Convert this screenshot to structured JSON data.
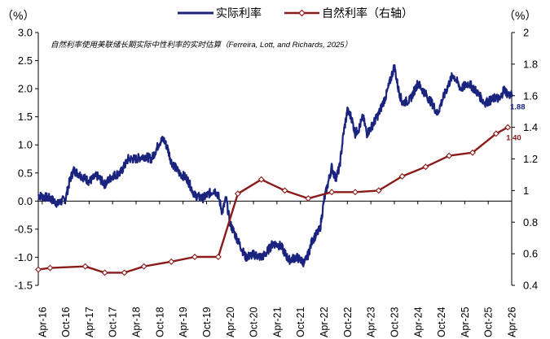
{
  "chart_data": {
    "type": "line",
    "annotation": "自然利率使用美联储长期实际中性利率的实时估算（Ferreira, Lott, and Richards, 2025）",
    "y_left": {
      "unit": "（%）",
      "ylim": [
        -1.5,
        3.0
      ],
      "ticks": [
        "3.0",
        "2.5",
        "2.0",
        "1.5",
        "1.0",
        "0.5",
        "0.0",
        "-0.5",
        "-1.0",
        "-1.5"
      ]
    },
    "y_right": {
      "unit": "（%）",
      "ylim": [
        0.4,
        2.0
      ],
      "ticks": [
        "2",
        "1.8",
        "1.6",
        "1.4",
        "1.2",
        "1",
        "0.8",
        "0.6",
        "0.4"
      ]
    },
    "x_range": [
      "2016-03",
      "2026-04"
    ],
    "x_ticks": [
      "Apr-16",
      "Oct-16",
      "Apr-17",
      "Oct-17",
      "Apr-18",
      "Oct-18",
      "Apr-19",
      "Oct-19",
      "Apr-20",
      "Oct-20",
      "Apr-21",
      "Oct-21",
      "Apr-22",
      "Oct-22",
      "Apr-23",
      "Oct-23",
      "Apr-24",
      "Oct-24",
      "Apr-25",
      "Oct-25",
      "Apr-26"
    ],
    "legend": "top",
    "grid": false,
    "series": [
      {
        "name": "实际利率",
        "axis": "left",
        "color": "#1a237e",
        "style": "line",
        "end_label": "1.88",
        "points": [
          [
            "2016-03",
            0.1
          ],
          [
            "2016-06",
            0.05
          ],
          [
            "2016-08",
            -0.05
          ],
          [
            "2016-10",
            0.05
          ],
          [
            "2016-11",
            0.35
          ],
          [
            "2016-12",
            0.55
          ],
          [
            "2017-02",
            0.45
          ],
          [
            "2017-04",
            0.35
          ],
          [
            "2017-06",
            0.45
          ],
          [
            "2017-08",
            0.3
          ],
          [
            "2017-10",
            0.45
          ],
          [
            "2017-12",
            0.5
          ],
          [
            "2018-02",
            0.75
          ],
          [
            "2018-04",
            0.75
          ],
          [
            "2018-06",
            0.8
          ],
          [
            "2018-08",
            0.75
          ],
          [
            "2018-10",
            1.05
          ],
          [
            "2018-11",
            1.1
          ],
          [
            "2018-12",
            0.95
          ],
          [
            "2019-01",
            0.7
          ],
          [
            "2019-03",
            0.5
          ],
          [
            "2019-05",
            0.4
          ],
          [
            "2019-07",
            0.1
          ],
          [
            "2019-09",
            0.05
          ],
          [
            "2019-11",
            0.15
          ],
          [
            "2019-12",
            0.2
          ],
          [
            "2020-01",
            0.1
          ],
          [
            "2020-02",
            -0.2
          ],
          [
            "2020-03",
            0.05
          ],
          [
            "2020-04",
            -0.4
          ],
          [
            "2020-06",
            -0.7
          ],
          [
            "2020-08",
            -1.0
          ],
          [
            "2020-10",
            -0.95
          ],
          [
            "2020-12",
            -1.0
          ],
          [
            "2021-01",
            -0.95
          ],
          [
            "2021-03",
            -0.75
          ],
          [
            "2021-05",
            -0.8
          ],
          [
            "2021-07",
            -1.05
          ],
          [
            "2021-09",
            -1.0
          ],
          [
            "2021-11",
            -1.1
          ],
          [
            "2021-12",
            -0.95
          ],
          [
            "2022-01",
            -0.7
          ],
          [
            "2022-03",
            -0.5
          ],
          [
            "2022-04",
            0.0
          ],
          [
            "2022-05",
            0.3
          ],
          [
            "2022-06",
            0.6
          ],
          [
            "2022-07",
            0.4
          ],
          [
            "2022-08",
            0.6
          ],
          [
            "2022-09",
            1.2
          ],
          [
            "2022-10",
            1.6
          ],
          [
            "2022-11",
            1.5
          ],
          [
            "2022-12",
            1.2
          ],
          [
            "2023-01",
            1.3
          ],
          [
            "2023-02",
            1.5
          ],
          [
            "2023-03",
            1.2
          ],
          [
            "2023-04",
            1.3
          ],
          [
            "2023-06",
            1.55
          ],
          [
            "2023-08",
            1.9
          ],
          [
            "2023-10",
            2.4
          ],
          [
            "2023-11",
            2.0
          ],
          [
            "2023-12",
            1.75
          ],
          [
            "2024-02",
            1.8
          ],
          [
            "2024-04",
            2.1
          ],
          [
            "2024-06",
            1.9
          ],
          [
            "2024-08",
            1.7
          ],
          [
            "2024-09",
            1.55
          ],
          [
            "2024-10",
            1.75
          ],
          [
            "2024-12",
            2.1
          ],
          [
            "2025-01",
            2.25
          ],
          [
            "2025-03",
            2.0
          ],
          [
            "2025-05",
            2.1
          ],
          [
            "2025-07",
            1.95
          ],
          [
            "2025-09",
            1.75
          ],
          [
            "2025-11",
            1.8
          ],
          [
            "2025-12",
            1.85
          ],
          [
            "2026-01",
            1.8
          ],
          [
            "2026-02",
            2.0
          ],
          [
            "2026-03",
            1.9
          ],
          [
            "2026-04",
            1.88
          ]
        ]
      },
      {
        "name": "自然利率（右轴）",
        "axis": "right",
        "color": "#8b1a1a",
        "style": "line-markers",
        "end_label": "1.40",
        "points": [
          [
            "2016-03",
            0.5
          ],
          [
            "2016-06",
            0.51
          ],
          [
            "2017-03",
            0.52
          ],
          [
            "2017-08",
            0.48
          ],
          [
            "2018-01",
            0.48
          ],
          [
            "2018-06",
            0.52
          ],
          [
            "2019-01",
            0.55
          ],
          [
            "2019-07",
            0.58
          ],
          [
            "2020-01",
            0.58
          ],
          [
            "2020-06",
            0.98
          ],
          [
            "2020-12",
            1.07
          ],
          [
            "2021-06",
            1.0
          ],
          [
            "2021-12",
            0.95
          ],
          [
            "2022-06",
            0.99
          ],
          [
            "2022-12",
            0.99
          ],
          [
            "2023-06",
            1.0
          ],
          [
            "2023-12",
            1.09
          ],
          [
            "2024-06",
            1.15
          ],
          [
            "2024-12",
            1.22
          ],
          [
            "2025-06",
            1.24
          ],
          [
            "2025-12",
            1.36
          ],
          [
            "2026-03",
            1.4
          ]
        ]
      }
    ]
  }
}
